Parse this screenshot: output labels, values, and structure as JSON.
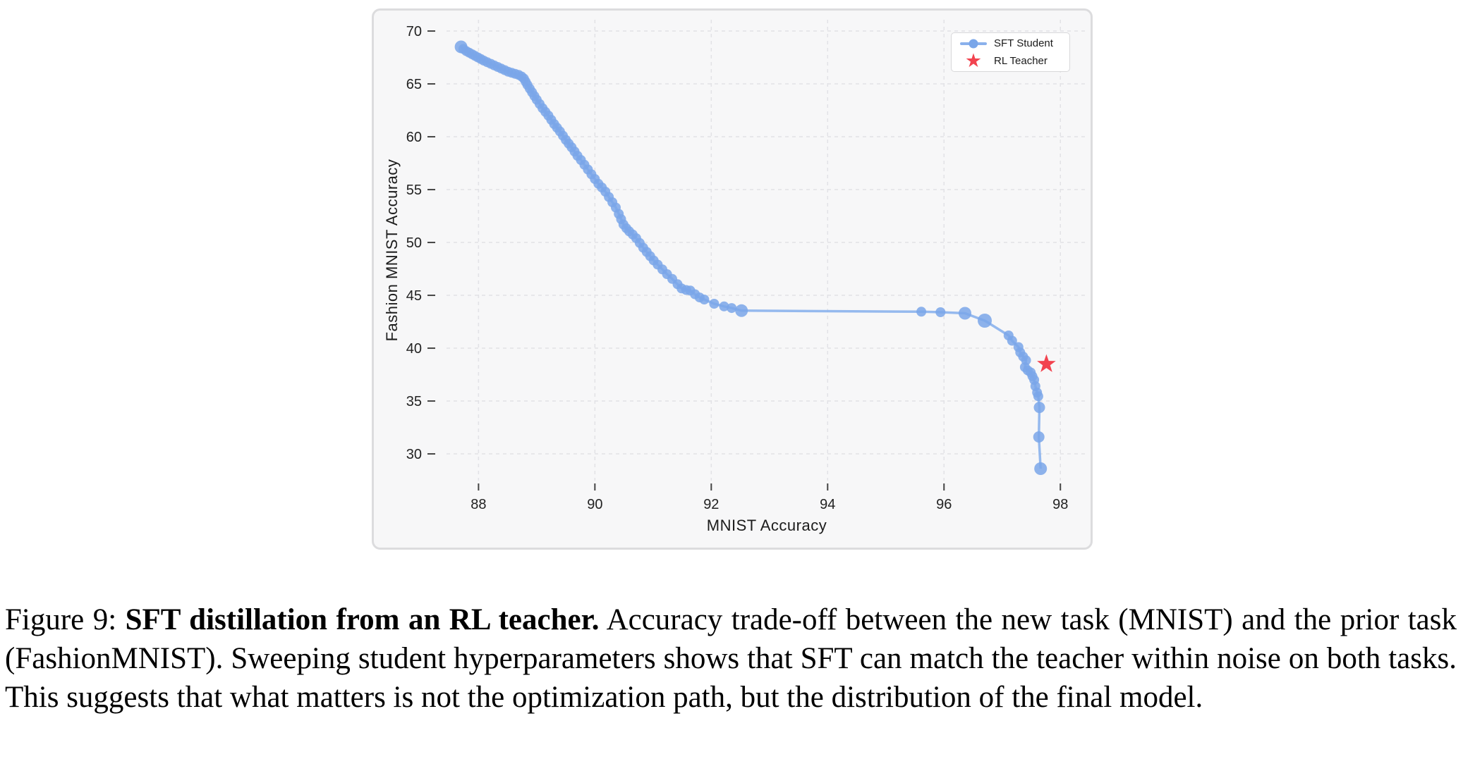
{
  "figure": {
    "caption_prefix": "Figure 9: ",
    "caption_bold": "SFT distillation from an RL teacher.",
    "caption_rest": " Accuracy trade-off between the new task (MNIST) and the prior task (FashionMNIST). Sweeping student hyperparameters shows that SFT can match the teacher within noise on both tasks. This suggests that what matters is not the optimization path, but the distribution of the final model."
  },
  "legend": {
    "items": [
      {
        "label": "SFT Student",
        "marker": "line-dot",
        "color": "#7aa6e9"
      },
      {
        "label": "RL Teacher",
        "marker": "star",
        "color": "#f2434f"
      }
    ]
  },
  "colors": {
    "student_marker": "#7aa6e9",
    "student_line": "#8ab1ec",
    "teacher_star": "#f2434f",
    "grid": "#e2e2e6",
    "tick": "#444444",
    "tick_label": "#222222",
    "card_bg": "#f7f7f8",
    "card_border": "#dcdcde"
  },
  "chart_data": {
    "type": "line",
    "title": "",
    "xlabel": "MNIST Accuracy",
    "ylabel": "Fashion MNIST Accuracy",
    "xlim": [
      87.45,
      98.47
    ],
    "ylim": [
      27.47,
      71.07
    ],
    "xticks": [
      88,
      90,
      92,
      94,
      96,
      98
    ],
    "yticks": [
      30,
      35,
      40,
      45,
      50,
      55,
      60,
      65,
      70
    ],
    "grid": true,
    "legend_position": "top-right",
    "series": [
      {
        "name": "SFT Student",
        "marker": "circle",
        "points": [
          [
            87.7,
            68.5,
            9
          ],
          [
            87.74,
            68.3
          ],
          [
            87.79,
            68.1
          ],
          [
            87.84,
            67.95
          ],
          [
            87.89,
            67.8
          ],
          [
            87.94,
            67.65
          ],
          [
            87.99,
            67.5
          ],
          [
            88.04,
            67.35
          ],
          [
            88.09,
            67.2
          ],
          [
            88.15,
            67.05
          ],
          [
            88.21,
            66.9
          ],
          [
            88.27,
            66.75
          ],
          [
            88.33,
            66.6
          ],
          [
            88.39,
            66.45
          ],
          [
            88.45,
            66.3
          ],
          [
            88.51,
            66.15
          ],
          [
            88.57,
            66.05
          ],
          [
            88.63,
            65.95
          ],
          [
            88.69,
            65.85
          ],
          [
            88.74,
            65.7
          ],
          [
            88.78,
            65.5
          ],
          [
            88.81,
            65.2
          ],
          [
            88.84,
            64.9
          ],
          [
            88.88,
            64.55
          ],
          [
            88.92,
            64.2
          ],
          [
            88.96,
            63.85
          ],
          [
            89.0,
            63.5
          ],
          [
            89.05,
            63.1
          ],
          [
            89.1,
            62.7
          ],
          [
            89.15,
            62.35
          ],
          [
            89.2,
            62.0
          ],
          [
            89.25,
            61.6
          ],
          [
            89.3,
            61.2
          ],
          [
            89.35,
            60.85
          ],
          [
            89.4,
            60.5
          ],
          [
            89.45,
            60.1
          ],
          [
            89.5,
            59.7
          ],
          [
            89.55,
            59.35
          ],
          [
            89.6,
            59.0
          ],
          [
            89.65,
            58.6
          ],
          [
            89.7,
            58.2
          ],
          [
            89.76,
            57.8
          ],
          [
            89.82,
            57.35
          ],
          [
            89.88,
            56.9
          ],
          [
            89.94,
            56.45
          ],
          [
            90.0,
            56.0
          ],
          [
            90.06,
            55.55
          ],
          [
            90.12,
            55.2
          ],
          [
            90.18,
            54.8
          ],
          [
            90.24,
            54.3
          ],
          [
            90.3,
            53.8
          ],
          [
            90.36,
            53.3
          ],
          [
            90.41,
            52.7
          ],
          [
            90.45,
            52.2
          ],
          [
            90.49,
            51.7
          ],
          [
            90.54,
            51.35
          ],
          [
            90.59,
            51.05
          ],
          [
            90.65,
            50.75
          ],
          [
            90.71,
            50.4
          ],
          [
            90.77,
            49.95
          ],
          [
            90.83,
            49.5
          ],
          [
            90.89,
            49.1
          ],
          [
            90.95,
            48.7
          ],
          [
            91.01,
            48.3
          ],
          [
            91.08,
            47.9
          ],
          [
            91.16,
            47.45
          ],
          [
            91.24,
            47.0
          ],
          [
            91.33,
            46.55
          ],
          [
            91.42,
            46.05
          ],
          [
            91.49,
            45.65
          ],
          [
            91.57,
            45.5
          ],
          [
            91.64,
            45.45
          ],
          [
            91.72,
            45.1
          ],
          [
            91.8,
            44.8
          ],
          [
            91.88,
            44.6
          ],
          [
            92.05,
            44.2
          ],
          [
            92.22,
            43.95
          ],
          [
            92.35,
            43.8
          ],
          [
            92.52,
            43.55,
            9
          ],
          [
            95.61,
            43.45
          ],
          [
            95.94,
            43.4
          ],
          [
            96.36,
            43.3,
            9
          ],
          [
            96.7,
            42.6,
            10
          ],
          [
            97.11,
            41.2
          ],
          [
            97.17,
            40.7
          ],
          [
            97.28,
            40.1
          ],
          [
            97.31,
            39.6
          ],
          [
            97.36,
            39.2
          ],
          [
            97.41,
            38.85
          ],
          [
            97.39,
            38.2
          ],
          [
            97.44,
            37.9
          ],
          [
            97.49,
            37.7
          ],
          [
            97.52,
            37.35
          ],
          [
            97.55,
            37.0
          ],
          [
            97.57,
            36.4
          ],
          [
            97.6,
            35.8
          ],
          [
            97.62,
            35.45
          ],
          [
            97.64,
            34.4,
            8
          ],
          [
            97.63,
            31.6,
            8
          ],
          [
            97.66,
            28.6,
            9
          ]
        ]
      },
      {
        "name": "RL Teacher",
        "marker": "star",
        "points": [
          [
            97.76,
            38.5
          ]
        ]
      }
    ]
  }
}
